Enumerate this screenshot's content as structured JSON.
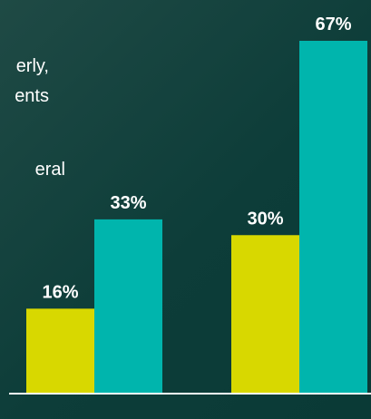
{
  "text_fragments": [
    "erly,",
    "ents",
    "eral"
  ],
  "chart_data": {
    "type": "bar",
    "categories": [
      "",
      ""
    ],
    "series": [
      {
        "values": [
          16,
          30
        ],
        "color": "#d8d800"
      },
      {
        "values": [
          33,
          67
        ],
        "color": "#00b5ad"
      }
    ],
    "data_labels": [
      [
        "16%",
        "30%"
      ],
      [
        "33%",
        "67%"
      ]
    ],
    "ylim": [
      0,
      67
    ],
    "baseline_color": "#ffffff",
    "grid": false,
    "legend": false
  }
}
